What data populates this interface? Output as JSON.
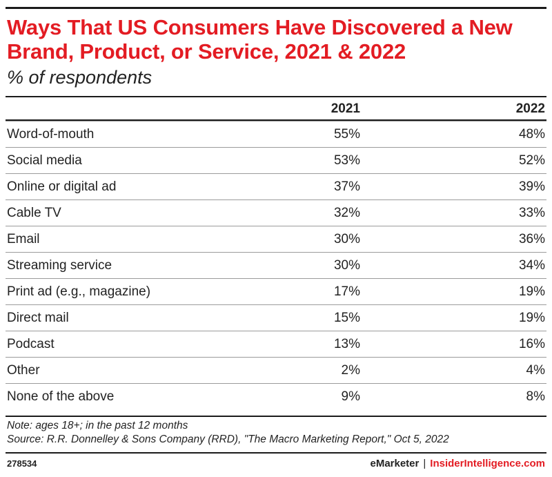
{
  "chart_data": {
    "type": "table",
    "title": "Ways That US Consumers Have Discovered a New Brand, Product, or Service, 2021 & 2022",
    "subtitle": "% of respondents",
    "columns": [
      "2021",
      "2022"
    ],
    "rows": [
      {
        "label": "Word-of-mouth",
        "v2021": "55%",
        "v2022": "48%"
      },
      {
        "label": "Social media",
        "v2021": "53%",
        "v2022": "52%"
      },
      {
        "label": "Online or digital ad",
        "v2021": "37%",
        "v2022": "39%"
      },
      {
        "label": "Cable TV",
        "v2021": "32%",
        "v2022": "33%"
      },
      {
        "label": "Email",
        "v2021": "30%",
        "v2022": "36%"
      },
      {
        "label": "Streaming service",
        "v2021": "30%",
        "v2022": "34%"
      },
      {
        "label": "Print ad (e.g., magazine)",
        "v2021": "17%",
        "v2022": "19%"
      },
      {
        "label": "Direct mail",
        "v2021": "15%",
        "v2022": "19%"
      },
      {
        "label": "Podcast",
        "v2021": "13%",
        "v2022": "16%"
      },
      {
        "label": "Other",
        "v2021": "2%",
        "v2022": "4%"
      },
      {
        "label": "None of the above",
        "v2021": "9%",
        "v2022": "8%"
      }
    ],
    "note": "Note: ages 18+; in the past 12 months",
    "source": "Source: R.R. Donnelley & Sons Company (RRD), \"The Macro Marketing Report,\" Oct 5, 2022"
  },
  "footer": {
    "chart_id": "278534",
    "brand_emarketer": "eMarketer",
    "separator": "|",
    "brand_insider": "InsiderIntelligence.com"
  },
  "colors": {
    "title": "#e31c23",
    "text": "#222222",
    "rule": "#1a1a1a"
  }
}
